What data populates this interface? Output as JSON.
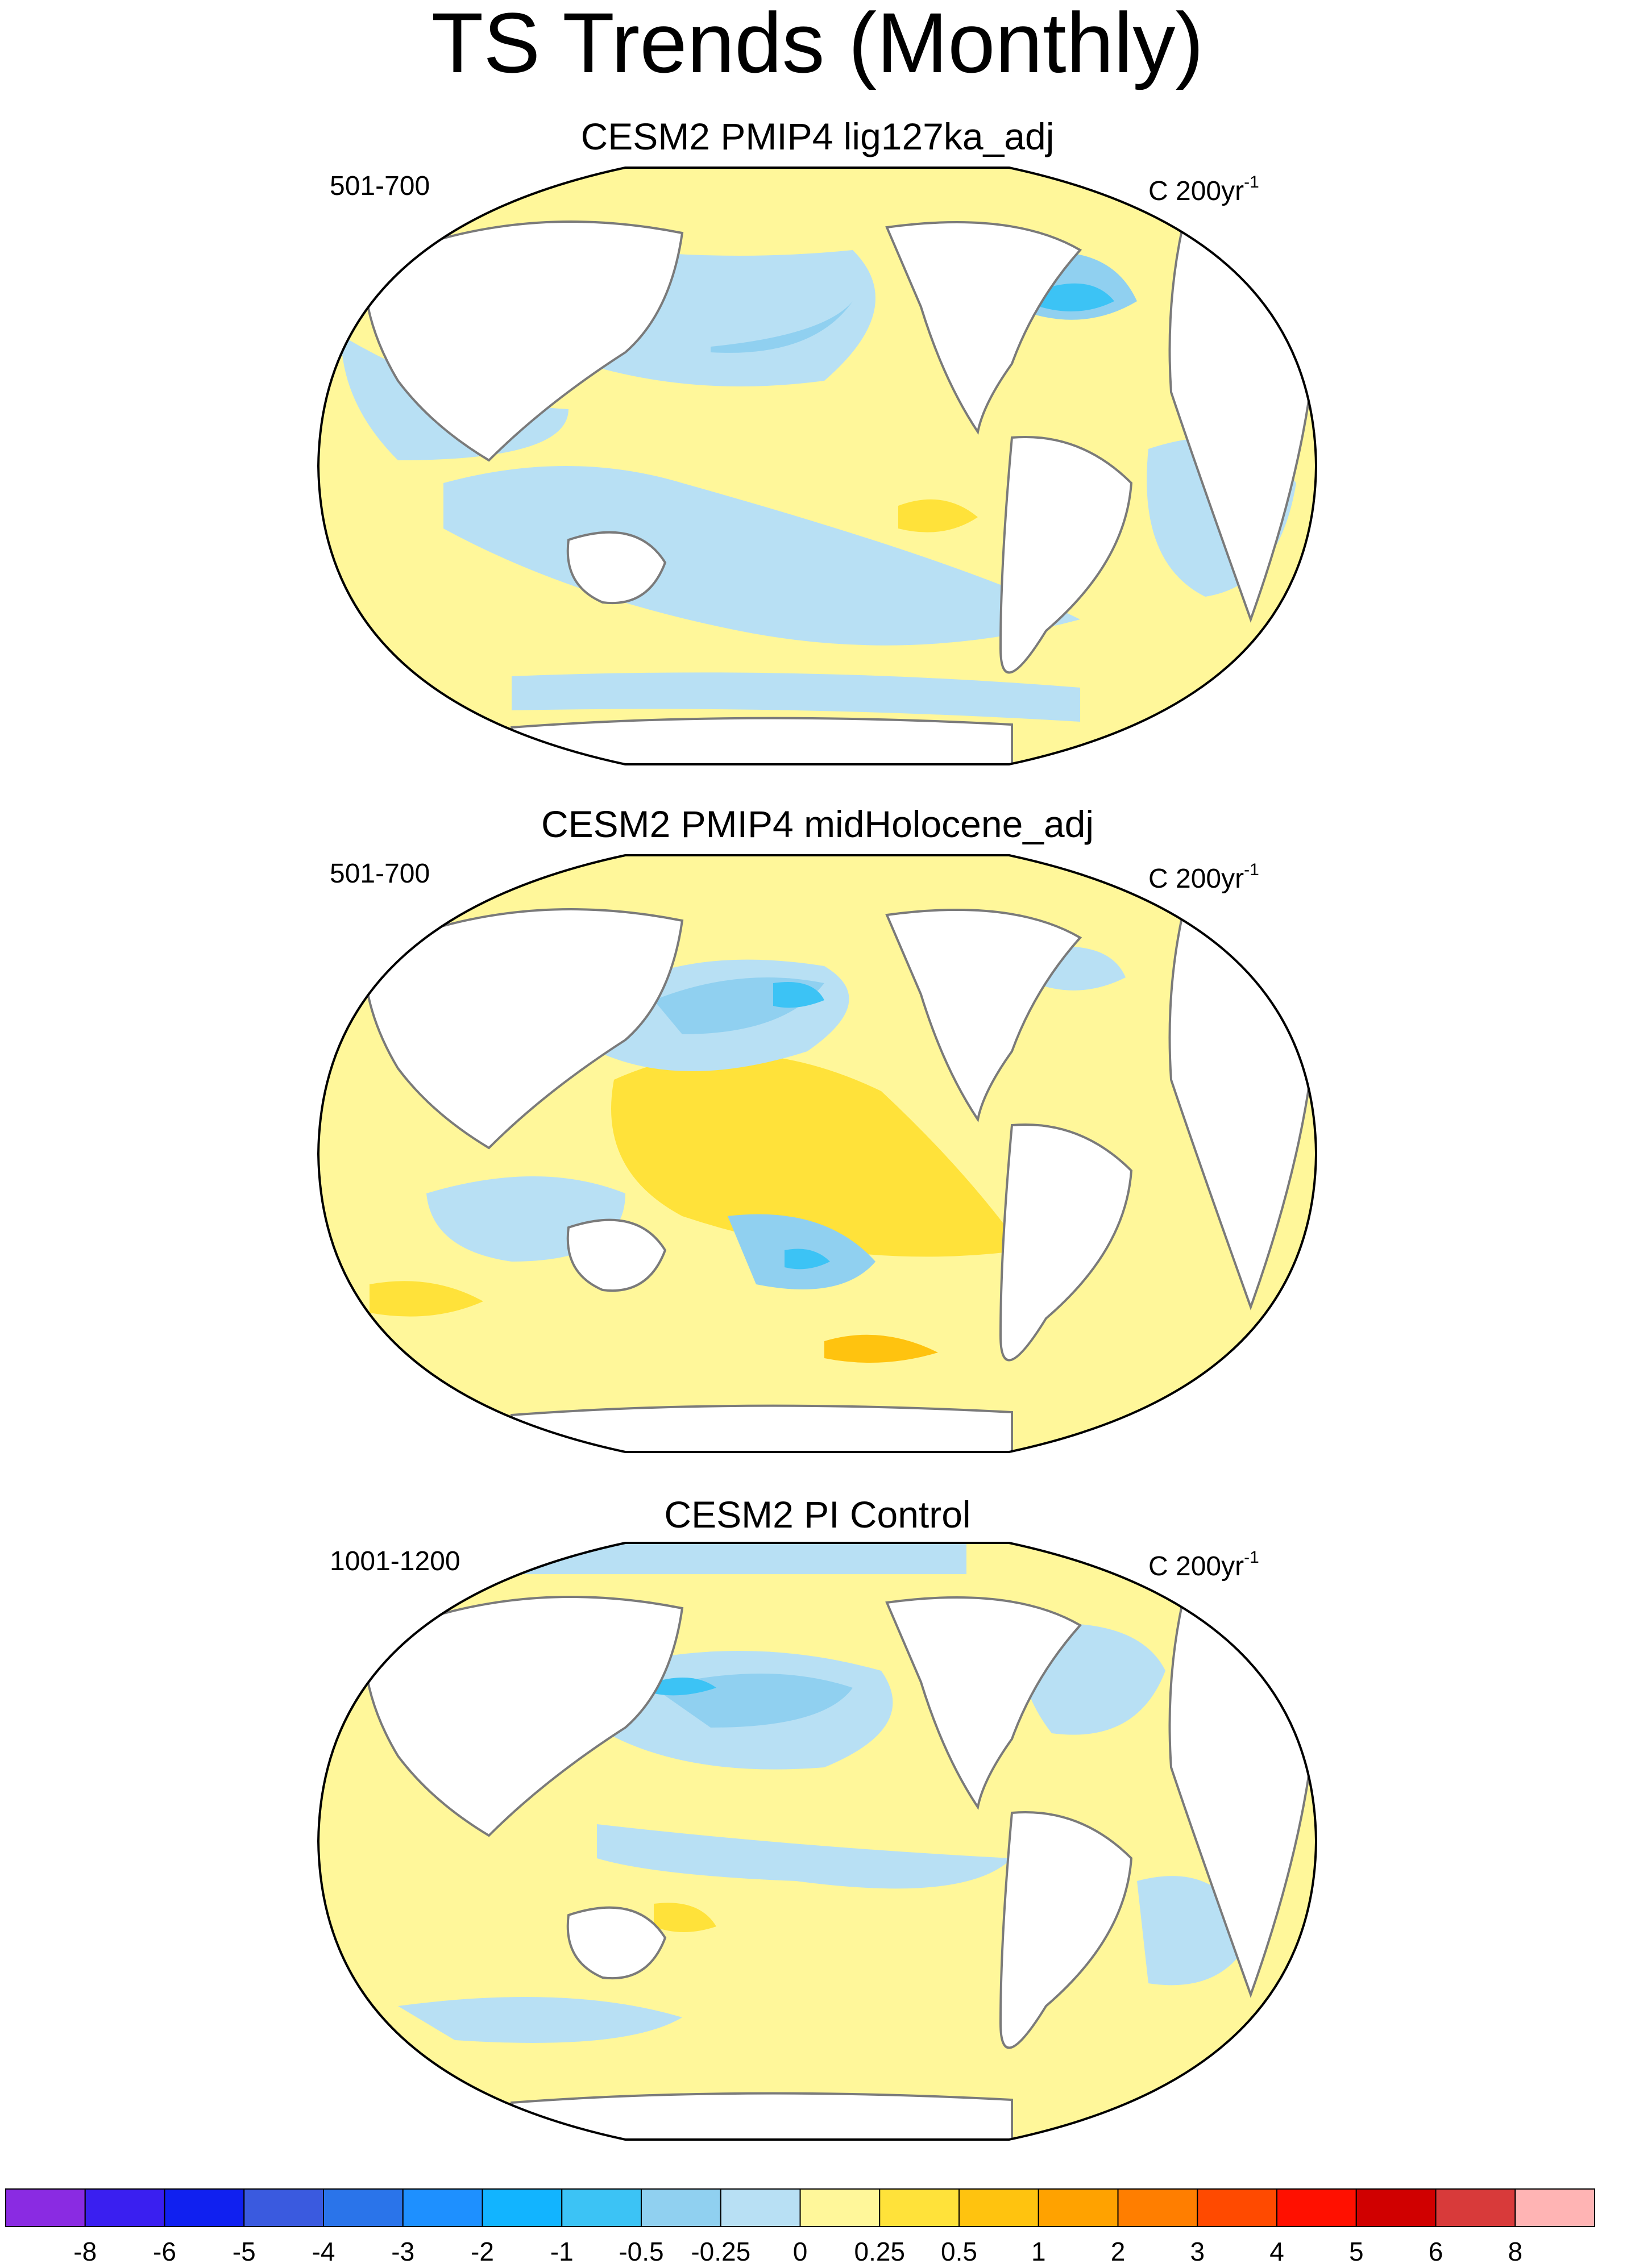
{
  "title": "TS Trends (Monthly)",
  "panels": [
    {
      "title": "CESM2 PMIP4 lig127ka_adj",
      "period": "501-700",
      "units_base": "C 200yr",
      "units_exp": "-1"
    },
    {
      "title": "CESM2 PMIP4 midHolocene_adj",
      "period": "501-700",
      "units_base": "C 200yr",
      "units_exp": "-1"
    },
    {
      "title": "CESM2 PI Control",
      "period": "1001-1200",
      "units_base": "C 200yr",
      "units_exp": "-1"
    }
  ],
  "colorbar": {
    "labels": [
      "-8",
      "-6",
      "-5",
      "-4",
      "-3",
      "-2",
      "-1",
      "-0.5",
      "-0.25",
      "0",
      "0.25",
      "0.5",
      "1",
      "2",
      "3",
      "4",
      "5",
      "6",
      "8"
    ],
    "colors": [
      "#8a2be2",
      "#3a1ff0",
      "#1020f0",
      "#3a5adf",
      "#2a74ea",
      "#1e90ff",
      "#12b4ff",
      "#3cc3f5",
      "#90d0f0",
      "#b8e0f4",
      "#fff79a",
      "#ffe23a",
      "#ffc30f",
      "#ffa200",
      "#ff7e00",
      "#ff4a00",
      "#ff1000",
      "#d00000",
      "#d83a3a",
      "#ffb4b4"
    ]
  },
  "field_colors": {
    "ocean_neutral": "#fff79a",
    "cool": "#b8e0f4",
    "cool2": "#90d0f0",
    "cool3": "#3cc3f5",
    "warm": "#ffe23a",
    "warm2": "#ffc30f",
    "land": "#ffffff",
    "coast": "#7a7a7a"
  }
}
